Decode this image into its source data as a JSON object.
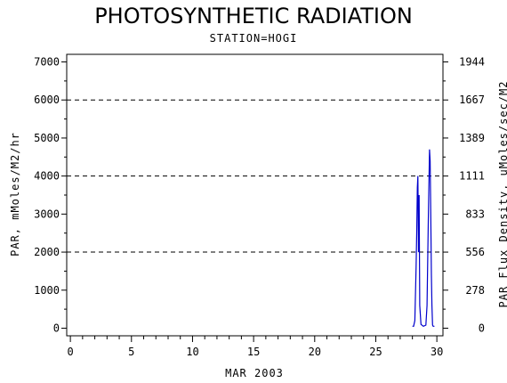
{
  "chart_data": {
    "type": "line",
    "title": "PHOTOSYNTHETIC RADIATION",
    "subtitle": "STATION=HOGI",
    "xlabel": "MAR 2003",
    "ylabel": "PAR, mMoles/M2/hr",
    "ylabel_right": "PAR Flux Density, uMoles/sec/M2",
    "xlim": [
      -0.3,
      30.5
    ],
    "ylim": [
      -200,
      7200
    ],
    "x_ticks": [
      0,
      5,
      10,
      15,
      20,
      25,
      30
    ],
    "y_ticks": [
      0,
      1000,
      2000,
      3000,
      4000,
      5000,
      6000,
      7000
    ],
    "y_ticks_right": [
      {
        "value": 0,
        "label": "0"
      },
      {
        "value": 1000,
        "label": "278"
      },
      {
        "value": 2000,
        "label": "556"
      },
      {
        "value": 3000,
        "label": "833"
      },
      {
        "value": 4000,
        "label": "1111"
      },
      {
        "value": 5000,
        "label": "1389"
      },
      {
        "value": 6000,
        "label": "1667"
      },
      {
        "value": 7000,
        "label": "1944"
      }
    ],
    "gridlines_y": [
      2000,
      4000,
      6000
    ],
    "grid_style": "dashed horizontal",
    "series_color": "#0000cc",
    "series": [
      {
        "x": [
          28.0,
          28.1,
          28.2,
          28.3,
          28.35,
          28.4,
          28.45,
          28.5,
          28.55,
          28.6,
          28.7,
          28.9,
          29.1,
          29.2,
          29.3,
          29.4,
          29.45,
          29.5,
          29.55,
          29.6,
          29.65,
          29.7,
          29.8
        ],
        "y": [
          50,
          50,
          200,
          1600,
          2500,
          3700,
          4000,
          2000,
          3500,
          600,
          100,
          50,
          80,
          600,
          2800,
          4700,
          4400,
          3000,
          1400,
          600,
          80,
          50,
          50
        ]
      }
    ]
  }
}
